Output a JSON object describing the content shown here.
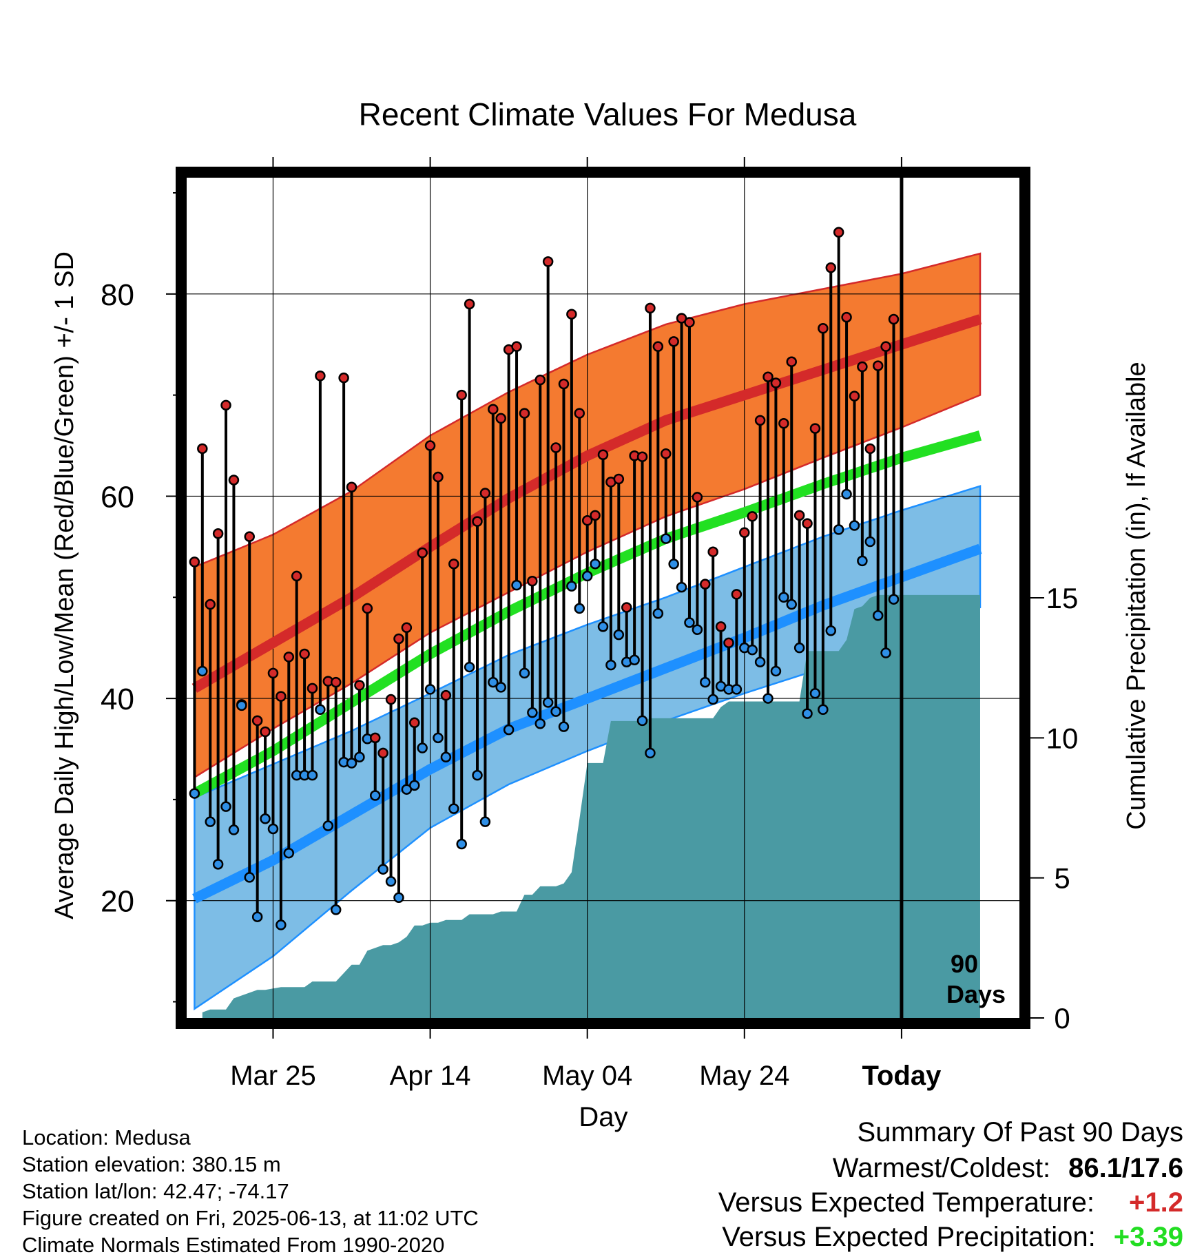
{
  "chart_data": {
    "type": "line",
    "title": "Recent Climate Values For Medusa",
    "xlabel": "Day",
    "ylabel": "Average Daily High/Low/Mean (Red/Blue/Green) +/- 1 SD",
    "y2label": "Cumulative Precipitation (in), If Available",
    "xlim": [
      0,
      106
    ],
    "ylim": [
      8.4,
      91.5
    ],
    "y2lim": [
      0,
      30
    ],
    "grid": true,
    "x_ticks": [
      {
        "x": 11,
        "label": "Mar 25"
      },
      {
        "x": 31,
        "label": "Apr 14"
      },
      {
        "x": 51,
        "label": "May 04"
      },
      {
        "x": 71,
        "label": "May 24"
      },
      {
        "x": 91,
        "label": "Today"
      }
    ],
    "y_ticks": [
      20,
      40,
      60,
      80
    ],
    "y2_ticks": [
      0,
      5,
      10,
      15
    ],
    "annotation": [
      "90",
      "Days"
    ],
    "normals": {
      "x": [
        1,
        11,
        21,
        31,
        41,
        51,
        61,
        71,
        81,
        91,
        101
      ],
      "high_mean": [
        41,
        45.5,
        50,
        55,
        59.8,
        64,
        67.5,
        70,
        72.5,
        75,
        77.5
      ],
      "high_upper": [
        53,
        56.2,
        60.5,
        66,
        70.3,
        74,
        77,
        79,
        80.5,
        82,
        84
      ],
      "high_lower": [
        32.2,
        37,
        41.5,
        46.5,
        50.5,
        54.5,
        58,
        60.7,
        63.8,
        66.8,
        70
      ],
      "avg_mean": [
        30.6,
        34.8,
        39.6,
        44.4,
        48.6,
        52.4,
        55.8,
        58.4,
        61.2,
        63.8,
        66
      ],
      "low_mean": [
        20.2,
        24,
        28.5,
        33,
        37,
        40,
        43,
        46,
        49.2,
        52,
        54.8
      ],
      "low_upper": [
        30.2,
        33.5,
        36.8,
        40.5,
        44.3,
        47.3,
        50,
        53,
        56,
        58.6,
        61
      ],
      "low_lower": [
        9.3,
        14.5,
        21,
        27.2,
        31.5,
        34.8,
        37.8,
        40.5,
        43,
        46,
        49
      ]
    },
    "daily": {
      "start_x": 1,
      "high": [
        53.5,
        64.7,
        49.3,
        56.3,
        69,
        61.6,
        39.4,
        56,
        37.8,
        36.7,
        42.5,
        40.2,
        44.1,
        52.1,
        44.4,
        41,
        71.9,
        41.7,
        41.6,
        71.7,
        60.9,
        41.3,
        48.9,
        36.1,
        34.6,
        39.9,
        45.9,
        47,
        37.6,
        54.4,
        65,
        61.9,
        40.3,
        53.3,
        70,
        79,
        57.5,
        60.3,
        68.6,
        67.7,
        74.5,
        74.8,
        68.2,
        51.6,
        71.5,
        83.2,
        64.8,
        71.1,
        78,
        68.2,
        57.6,
        58.1,
        64.1,
        61.4,
        61.7,
        49,
        64,
        63.9,
        78.6,
        74.8,
        64.2,
        75.3,
        77.6,
        77.2,
        59.9,
        51.3,
        54.5,
        47.1,
        45.5,
        50.3,
        56.4,
        58,
        67.5,
        71.8,
        71.2,
        67.2,
        73.3,
        58.1,
        57.3,
        66.7,
        76.6,
        82.6,
        86.1,
        77.7,
        69.9,
        72.8,
        64.7,
        72.9,
        74.8,
        77.5
      ],
      "low": [
        30.6,
        42.7,
        27.8,
        23.6,
        29.3,
        27,
        39.3,
        22.3,
        18.4,
        28.1,
        27.1,
        17.6,
        24.7,
        32.4,
        32.4,
        32.4,
        38.9,
        27.4,
        19.1,
        33.7,
        33.6,
        34.2,
        36,
        30.4,
        23.1,
        21.9,
        20.3,
        31,
        31.4,
        35.1,
        40.9,
        36.1,
        34.2,
        29.1,
        25.6,
        43.1,
        32.4,
        27.8,
        41.6,
        41.1,
        36.9,
        51.2,
        42.5,
        38.6,
        37.5,
        39.6,
        38.7,
        37.2,
        51.1,
        48.9,
        52.1,
        53.3,
        47.1,
        43.3,
        46.3,
        43.6,
        43.8,
        37.8,
        34.6,
        48.4,
        55.8,
        53.3,
        51,
        47.5,
        46.8,
        41.6,
        39.9,
        41.2,
        40.9,
        40.9,
        45,
        44.8,
        43.6,
        40,
        42.7,
        50,
        49.3,
        45,
        38.5,
        40.5,
        38.9,
        46.7,
        56.7,
        60.2,
        57.1,
        53.6,
        55.5,
        48.2,
        44.5,
        49.8
      ]
    },
    "precip_cumulative": {
      "x": [
        2,
        3,
        5,
        6,
        8,
        9,
        10,
        12,
        13,
        15,
        16,
        18,
        19,
        20,
        21,
        22,
        23,
        25,
        26,
        27,
        28,
        29,
        30,
        31,
        32,
        33,
        34,
        35,
        36,
        37,
        38,
        39,
        40,
        41,
        42,
        43,
        44,
        45,
        46,
        47,
        48,
        49,
        50,
        51,
        52,
        53,
        54,
        55,
        56,
        57,
        58,
        59,
        60,
        61,
        62,
        63,
        64,
        65,
        66,
        67,
        68,
        69,
        70,
        71,
        72,
        73,
        74,
        75,
        76,
        77,
        78,
        79,
        80,
        81,
        82,
        83,
        84,
        85,
        86,
        87,
        88,
        89,
        90,
        91,
        92,
        93,
        94,
        95,
        96,
        97,
        98,
        99,
        100,
        101
      ],
      "y": [
        0.2,
        0.3,
        0.3,
        0.7,
        0.9,
        1,
        1,
        1.1,
        1.1,
        1.1,
        1.3,
        1.3,
        1.3,
        1.6,
        1.9,
        1.9,
        2.4,
        2.6,
        2.6,
        2.7,
        2.9,
        3.3,
        3.3,
        3.4,
        3.4,
        3.5,
        3.5,
        3.5,
        3.7,
        3.7,
        3.7,
        3.7,
        3.8,
        3.8,
        3.8,
        4.4,
        4.4,
        4.7,
        4.7,
        4.7,
        4.8,
        5.2,
        7.1,
        9.1,
        9.1,
        9.1,
        10.6,
        10.6,
        10.6,
        10.6,
        10.6,
        10.7,
        10.7,
        10.7,
        10.7,
        10.7,
        10.7,
        10.7,
        10.7,
        10.7,
        11.1,
        11.3,
        11.3,
        11.3,
        11.3,
        11.3,
        11.3,
        11.3,
        11.3,
        11.3,
        11.3,
        13.1,
        13.1,
        13.1,
        13.1,
        13.1,
        13.5,
        14.6,
        14.7,
        15,
        15.1,
        15.1,
        15.1,
        15.1,
        15.1,
        15.1,
        15.1,
        15.1,
        15.1,
        15.1,
        15.1,
        15.1,
        15.1,
        15.1
      ]
    },
    "colors": {
      "high_band": "#f47a30",
      "high_line": "#d42a2a",
      "avg_line": "#22e022",
      "low_band": "#7dbde6",
      "low_line": "#1e90ff",
      "precip": "#4a9aa3",
      "high_dot": "#d42a2a",
      "low_dot": "#2f8fe6"
    }
  },
  "footer": {
    "location": "Location: Medusa",
    "elevation": "Station elevation: 380.15 m",
    "latlon": "Station lat/lon: 42.47; -74.17",
    "created": "Figure created on Fri, 2025-06-13, at 11:02 UTC",
    "normals": "Climate Normals Estimated From 1990-2020"
  },
  "summary": {
    "title": "Summary Of Past 90 Days",
    "warmest_label": "Warmest/Coldest:",
    "warmest_value": "86.1/17.6",
    "temp_label": "Versus Expected Temperature:",
    "temp_value": "+1.2",
    "temp_color": "#d42a2a",
    "precip_label": "Versus Expected Precipitation:",
    "precip_value": "+3.39",
    "precip_color": "#22dd22"
  }
}
